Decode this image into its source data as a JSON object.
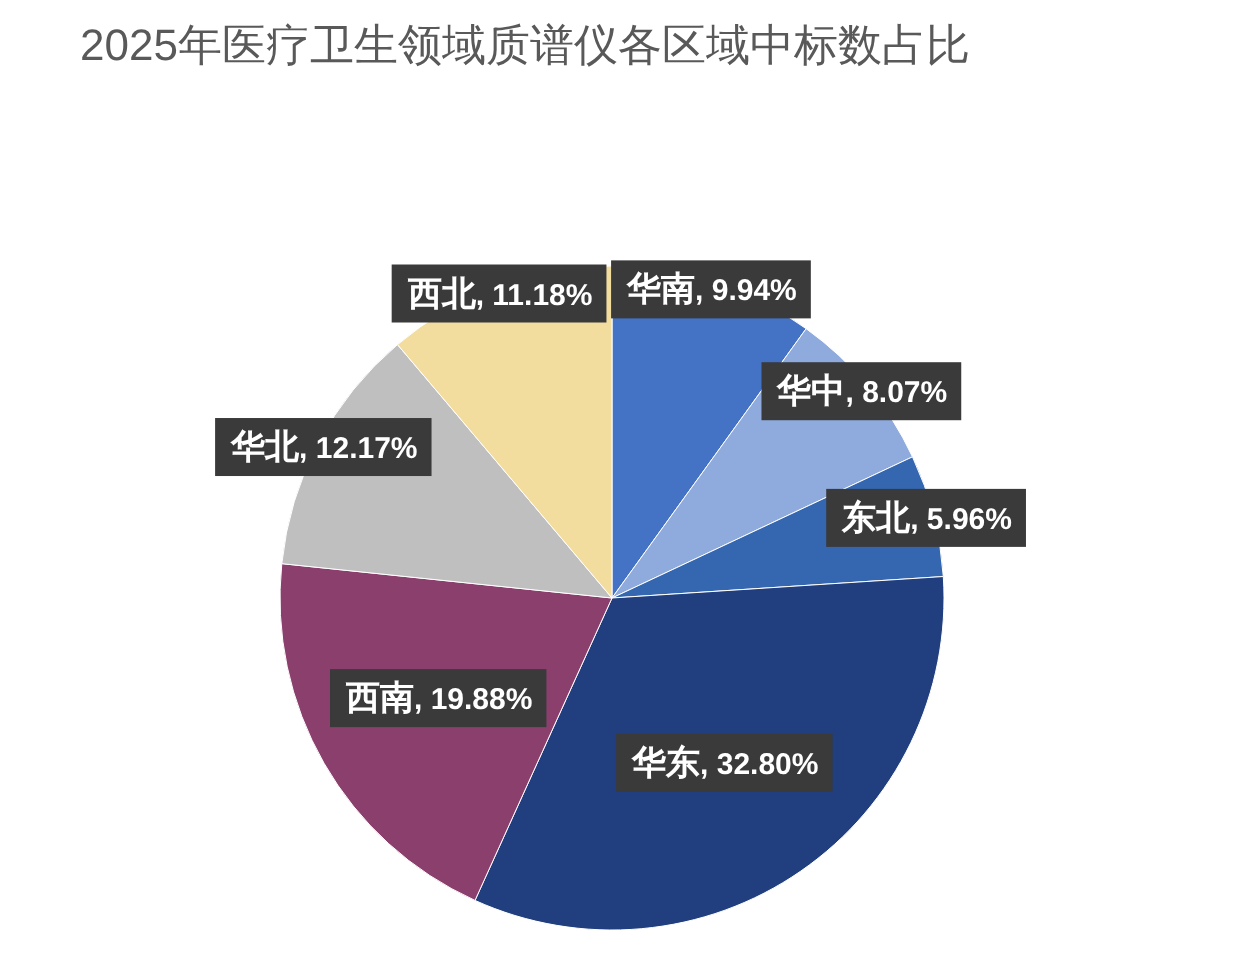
{
  "chart_data": {
    "type": "pie",
    "title": "2025年医疗卫生领域质谱仪各区域中标数占比",
    "categories": [
      "华南",
      "华中",
      "东北",
      "华东",
      "西南",
      "华北",
      "西北"
    ],
    "values": [
      9.94,
      8.07,
      5.96,
      32.8,
      19.88,
      12.17,
      11.18
    ],
    "value_labels": [
      ", 9.94%",
      ", 8.07%",
      ", 5.96%",
      ", 32.80%",
      ", 19.88%",
      ", 12.17%",
      ", 11.18%"
    ],
    "colors": [
      "#4472c4",
      "#8faadc",
      "#3567b0",
      "#213f7e",
      "#8b3f6d",
      "#bfbfbf",
      "#f2dc9e"
    ]
  }
}
